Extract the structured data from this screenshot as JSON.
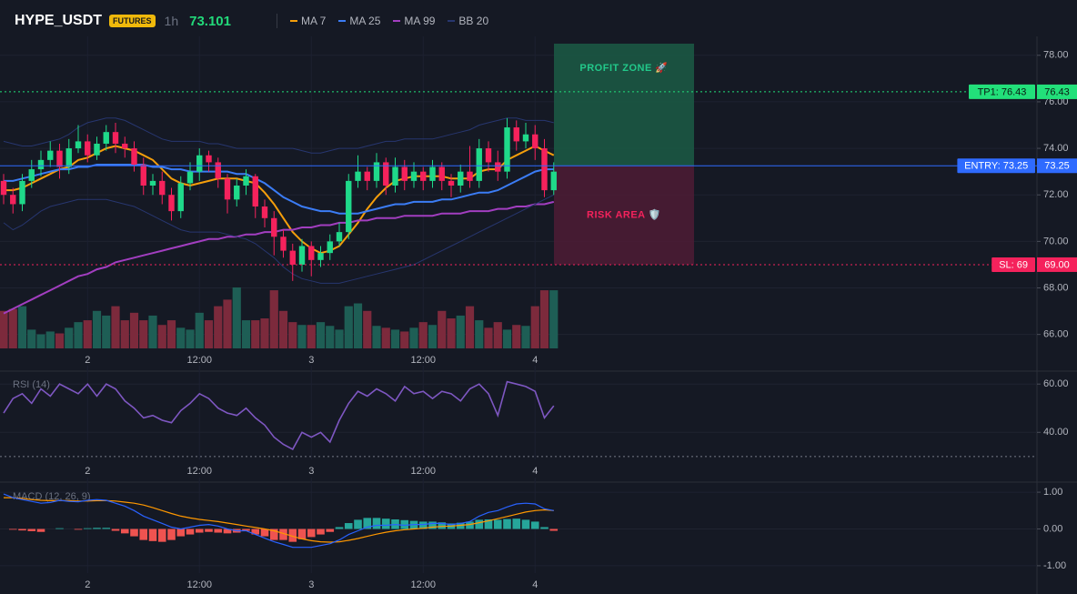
{
  "header": {
    "symbol": "HYPE_USDT",
    "badge": "FUTURES",
    "interval": "1h",
    "price": "73.101"
  },
  "chart_data": [
    {
      "type": "candlestick",
      "categories": [
        null,
        null,
        null,
        null,
        null,
        null,
        null,
        null,
        null,
        "2",
        null,
        null,
        null,
        null,
        null,
        null,
        null,
        null,
        null,
        null,
        null,
        "12:00",
        null,
        null,
        null,
        null,
        null,
        null,
        null,
        null,
        null,
        null,
        null,
        "3",
        null,
        null,
        null,
        null,
        null,
        null,
        null,
        null,
        null,
        null,
        null,
        "12:00",
        null,
        null,
        null,
        null,
        null,
        null,
        null,
        null,
        null,
        null,
        null,
        "4",
        null,
        null
      ],
      "open": [
        72.6,
        72.0,
        71.6,
        72.6,
        73.1,
        73.5,
        73.9,
        73.2,
        74.0,
        74.3,
        73.7,
        74.2,
        74.7,
        74.2,
        74.0,
        73.3,
        72.4,
        72.6,
        72.0,
        71.3,
        72.5,
        73.0,
        73.7,
        73.4,
        72.7,
        71.8,
        72.4,
        72.8,
        71.5,
        71.0,
        70.2,
        69.6,
        69.0,
        69.8,
        69.2,
        69.5,
        70.0,
        70.4,
        72.6,
        73.0,
        72.6,
        73.4,
        72.4,
        73.2,
        72.6,
        73.0,
        72.6,
        73.2,
        72.6,
        72.4,
        73.0,
        72.6,
        74.0,
        73.4,
        73.0,
        74.9,
        74.3,
        74.6,
        74.0,
        72.2
      ],
      "high": [
        72.9,
        72.3,
        72.9,
        73.5,
        73.9,
        74.3,
        74.2,
        74.4,
        75.0,
        74.6,
        74.5,
        75.0,
        75.1,
        74.5,
        74.3,
        73.6,
        72.9,
        73.0,
        72.3,
        72.8,
        73.4,
        74.0,
        73.9,
        73.6,
        72.9,
        72.7,
        73.1,
        72.9,
        71.8,
        71.3,
        70.5,
        69.9,
        70.1,
        70.0,
        69.8,
        70.3,
        70.8,
        72.9,
        73.7,
        73.2,
        73.8,
        73.6,
        73.6,
        73.5,
        73.4,
        73.2,
        73.5,
        73.4,
        72.9,
        73.3,
        74.1,
        74.4,
        74.3,
        73.9,
        75.3,
        75.2,
        75.1,
        75.0,
        74.4,
        73.4
      ],
      "low": [
        71.6,
        71.2,
        71.3,
        72.3,
        72.8,
        73.2,
        72.7,
        72.9,
        73.8,
        73.4,
        73.5,
        73.9,
        73.8,
        73.6,
        73.0,
        72.0,
        72.0,
        71.6,
        70.9,
        71.0,
        72.2,
        72.6,
        73.0,
        72.3,
        71.2,
        71.5,
        72.0,
        71.0,
        70.6,
        69.4,
        69.3,
        68.3,
        68.7,
        68.5,
        68.9,
        69.2,
        69.8,
        70.1,
        72.3,
        72.2,
        72.3,
        72.0,
        72.1,
        72.2,
        72.3,
        72.2,
        72.3,
        72.2,
        71.9,
        72.1,
        72.3,
        72.3,
        73.0,
        72.6,
        72.7,
        73.9,
        74.0,
        73.5,
        71.9,
        72.0
      ],
      "close": [
        72.0,
        71.6,
        72.6,
        73.1,
        73.5,
        73.9,
        73.2,
        74.0,
        74.3,
        73.7,
        74.2,
        74.7,
        74.2,
        74.0,
        73.3,
        72.4,
        72.6,
        72.0,
        71.3,
        72.5,
        73.0,
        73.7,
        73.4,
        72.7,
        71.8,
        72.4,
        72.8,
        71.5,
        71.0,
        70.2,
        69.6,
        69.0,
        69.8,
        69.2,
        69.5,
        70.0,
        70.4,
        72.6,
        73.0,
        72.6,
        73.4,
        72.4,
        73.2,
        72.6,
        73.0,
        72.6,
        73.2,
        72.6,
        72.4,
        73.0,
        72.6,
        74.0,
        73.4,
        73.0,
        74.9,
        74.3,
        74.6,
        74.0,
        72.2,
        73.0
      ],
      "volume": [
        40,
        42,
        45,
        20,
        15,
        18,
        16,
        22,
        28,
        30,
        40,
        35,
        45,
        30,
        38,
        30,
        35,
        25,
        30,
        22,
        20,
        38,
        30,
        45,
        52,
        65,
        30,
        30,
        32,
        62,
        40,
        28,
        25,
        25,
        28,
        24,
        20,
        45,
        48,
        40,
        24,
        22,
        20,
        18,
        22,
        28,
        25,
        40,
        32,
        35,
        45,
        30,
        22,
        28,
        20,
        25,
        24,
        45,
        62,
        62
      ],
      "volume_ylim": [
        0,
        325
      ],
      "up_color": "#1fd98a",
      "down_color": "#f5225c",
      "volume_up_color": "#1e5e55",
      "volume_down_color": "#7c2a3c",
      "series": [
        {
          "name": "MA 7",
          "color": "#f59e0b",
          "values": [
            72.2,
            72.2,
            72.3,
            72.5,
            72.7,
            72.9,
            73.1,
            73.2,
            73.5,
            73.6,
            73.8,
            74.0,
            74.1,
            74.0,
            73.9,
            73.7,
            73.5,
            73.1,
            72.7,
            72.5,
            72.4,
            72.5,
            72.6,
            72.7,
            72.7,
            72.7,
            72.6,
            72.5,
            72.1,
            71.6,
            71.0,
            70.4,
            70.0,
            69.7,
            69.5,
            69.6,
            69.8,
            70.3,
            70.8,
            71.4,
            71.9,
            72.3,
            72.6,
            72.7,
            72.8,
            72.8,
            72.8,
            72.8,
            72.7,
            72.7,
            72.7,
            73.0,
            73.1,
            73.1,
            73.5,
            73.7,
            73.9,
            74.1,
            73.9,
            73.7
          ]
        },
        {
          "name": "MA 25",
          "color": "#3b7cf5",
          "values": [
            72.6,
            72.6,
            72.7,
            72.8,
            72.9,
            73.0,
            73.1,
            73.1,
            73.2,
            73.2,
            73.3,
            73.3,
            73.3,
            73.3,
            73.3,
            73.3,
            73.2,
            73.2,
            73.1,
            73.1,
            73.0,
            73.0,
            73.0,
            73.0,
            73.0,
            72.9,
            72.9,
            72.7,
            72.5,
            72.2,
            71.9,
            71.7,
            71.5,
            71.4,
            71.3,
            71.3,
            71.2,
            71.2,
            71.2,
            71.3,
            71.4,
            71.5,
            71.6,
            71.6,
            71.7,
            71.7,
            71.7,
            71.8,
            71.8,
            71.9,
            72.0,
            72.1,
            72.1,
            72.2,
            72.4,
            72.6,
            72.8,
            73.0,
            73.1,
            73.1
          ]
        },
        {
          "name": "MA 99",
          "color": "#a23ec0",
          "values": [
            66.9,
            67.1,
            67.3,
            67.5,
            67.7,
            67.9,
            68.1,
            68.3,
            68.5,
            68.6,
            68.8,
            68.9,
            69.1,
            69.2,
            69.3,
            69.4,
            69.5,
            69.6,
            69.7,
            69.8,
            69.9,
            70.0,
            70.1,
            70.1,
            70.2,
            70.2,
            70.3,
            70.3,
            70.4,
            70.4,
            70.5,
            70.5,
            70.6,
            70.6,
            70.7,
            70.7,
            70.8,
            70.8,
            70.9,
            70.9,
            71.0,
            71.0,
            71.0,
            71.1,
            71.1,
            71.1,
            71.1,
            71.2,
            71.2,
            71.2,
            71.3,
            71.3,
            71.3,
            71.4,
            71.4,
            71.5,
            71.5,
            71.6,
            71.6,
            71.7
          ]
        },
        {
          "name": "BB 20",
          "color": "#27366f",
          "values": [
            74.3,
            74.2,
            74.1,
            74.1,
            74.2,
            74.3,
            74.4,
            74.6,
            74.9,
            75.1,
            75.2,
            75.3,
            75.3,
            75.2,
            75.0,
            74.8,
            74.6,
            74.4,
            74.3,
            74.3,
            74.3,
            74.3,
            74.2,
            74.2,
            74.1,
            74.0,
            74.0,
            74.0,
            74.0,
            74.0,
            74.0,
            74.0,
            73.9,
            73.8,
            73.8,
            73.9,
            74.0,
            74.0,
            74.0,
            74.1,
            74.2,
            74.3,
            74.3,
            74.4,
            74.4,
            74.4,
            74.4,
            74.5,
            74.6,
            74.7,
            74.8,
            75.0,
            75.1,
            75.2,
            75.3,
            75.3,
            75.2,
            75.2,
            75.2,
            75.1
          ],
          "lower": [
            70.8,
            70.5,
            70.7,
            71.0,
            71.3,
            71.5,
            71.6,
            71.7,
            71.8,
            71.8,
            71.8,
            71.8,
            71.7,
            71.6,
            71.5,
            71.3,
            71.1,
            70.9,
            70.7,
            70.5,
            70.4,
            70.4,
            70.4,
            70.4,
            70.3,
            70.2,
            70.1,
            69.9,
            69.6,
            69.3,
            68.9,
            68.6,
            68.4,
            68.3,
            68.2,
            68.2,
            68.2,
            68.3,
            68.4,
            68.5,
            68.6,
            68.7,
            68.8,
            68.9,
            69.0,
            69.2,
            69.4,
            69.6,
            69.8,
            70.0,
            70.2,
            70.4,
            70.6,
            70.8,
            71.0,
            71.2,
            71.4,
            71.6,
            71.8,
            72.0
          ]
        }
      ],
      "ylim": [
        65.4,
        78.5
      ],
      "yticks": [
        {
          "value": 66,
          "label": "66.00"
        },
        {
          "value": 68,
          "label": "68.00"
        },
        {
          "value": 70,
          "label": "70.00"
        },
        {
          "value": 72,
          "label": "72.00"
        },
        {
          "value": 74,
          "label": "74.00"
        },
        {
          "value": 76,
          "label": "76.00"
        },
        {
          "value": 78,
          "label": "78.00"
        }
      ],
      "grid": true,
      "levels": [
        {
          "label": "TP1: 76.43",
          "value": 76.43,
          "color": "#22e07a",
          "text_color": "#0b1a12",
          "style": "dotted"
        },
        {
          "label": "ENTRY: 73.25",
          "value": 73.25,
          "color": "#2f6bff",
          "text_color": "#ffffff",
          "style": "solid"
        },
        {
          "label": "SL: 69",
          "value": 69,
          "value_label": "69.00",
          "color": "#f5225c",
          "text_color": "#ffffff",
          "style": "dotted"
        }
      ],
      "zones": [
        {
          "label": "PROFIT ZONE 🚀",
          "from": 73.25,
          "to": 78.5,
          "color": "#1b5c45",
          "text_color": "#22c98a"
        },
        {
          "label": "RISK AREA 🛡️",
          "from": 69,
          "to": 73.25,
          "color": "#4d1c35",
          "text_color": "#f5225c"
        }
      ]
    },
    {
      "type": "line",
      "title": "RSI (14)",
      "series": [
        {
          "color": "#7e57c2",
          "values": [
            48,
            54,
            56,
            52,
            58,
            55,
            60,
            58,
            56,
            60,
            55,
            60,
            58,
            53,
            50,
            46,
            47,
            45,
            44,
            49,
            52,
            56,
            54,
            50,
            48,
            47,
            50,
            46,
            43,
            38,
            35,
            33,
            40,
            38,
            40,
            36,
            45,
            52,
            57,
            55,
            58,
            56,
            53,
            59,
            56,
            57,
            54,
            57,
            56,
            53,
            58,
            60,
            56,
            47,
            61,
            60,
            59,
            57,
            46,
            51
          ]
        }
      ],
      "ylim": [
        28.8,
        64.6
      ],
      "yticks": [
        {
          "value": 40,
          "label": "40.00"
        },
        {
          "value": 60,
          "label": "60.00"
        }
      ],
      "hlines": [
        30
      ]
    },
    {
      "type": "macd",
      "title": "MACD (12, 26, 9)",
      "macd": {
        "color": "#2962ff",
        "values": [
          0.95,
          0.85,
          0.8,
          0.75,
          0.7,
          0.72,
          0.78,
          0.75,
          0.74,
          0.78,
          0.8,
          0.78,
          0.7,
          0.62,
          0.5,
          0.35,
          0.25,
          0.15,
          0.05,
          0.0,
          0.05,
          0.1,
          0.12,
          0.08,
          0.0,
          -0.05,
          -0.05,
          -0.15,
          -0.25,
          -0.35,
          -0.42,
          -0.5,
          -0.5,
          -0.5,
          -0.45,
          -0.4,
          -0.3,
          -0.15,
          -0.05,
          0.05,
          0.1,
          0.1,
          0.12,
          0.1,
          0.12,
          0.12,
          0.15,
          0.15,
          0.12,
          0.15,
          0.2,
          0.35,
          0.45,
          0.5,
          0.6,
          0.68,
          0.7,
          0.68,
          0.55,
          0.5
        ]
      },
      "signal": {
        "color": "#ff9800",
        "values": [
          0.85,
          0.85,
          0.83,
          0.8,
          0.78,
          0.77,
          0.77,
          0.77,
          0.76,
          0.76,
          0.77,
          0.77,
          0.76,
          0.73,
          0.7,
          0.65,
          0.58,
          0.5,
          0.42,
          0.35,
          0.3,
          0.26,
          0.23,
          0.2,
          0.16,
          0.12,
          0.08,
          0.04,
          0.0,
          -0.05,
          -0.12,
          -0.2,
          -0.27,
          -0.32,
          -0.35,
          -0.36,
          -0.35,
          -0.31,
          -0.26,
          -0.2,
          -0.14,
          -0.09,
          -0.05,
          -0.02,
          0.0,
          0.02,
          0.05,
          0.07,
          0.08,
          0.1,
          0.12,
          0.17,
          0.22,
          0.28,
          0.34,
          0.4,
          0.46,
          0.5,
          0.52,
          0.5
        ]
      },
      "histogram": {
        "up_color": "#26a69a",
        "down_color": "#ef5350",
        "values": [
          0.0,
          -0.02,
          -0.04,
          -0.06,
          -0.08,
          0.0,
          0.02,
          0.0,
          -0.02,
          0.02,
          0.03,
          0.03,
          -0.05,
          -0.12,
          -0.2,
          -0.3,
          -0.33,
          -0.35,
          -0.3,
          -0.2,
          -0.15,
          -0.1,
          -0.08,
          -0.1,
          -0.12,
          -0.1,
          -0.05,
          -0.15,
          -0.2,
          -0.3,
          -0.3,
          -0.35,
          -0.28,
          -0.22,
          -0.15,
          -0.08,
          0.05,
          0.16,
          0.25,
          0.3,
          0.3,
          0.28,
          0.26,
          0.24,
          0.22,
          0.2,
          0.2,
          0.18,
          0.15,
          0.17,
          0.2,
          0.25,
          0.26,
          0.25,
          0.27,
          0.28,
          0.25,
          0.2,
          0.05,
          -0.05
        ]
      },
      "ylim": [
        -1.2,
        1.2
      ],
      "yticks": [
        {
          "value": 1,
          "label": "1.00"
        },
        {
          "value": 0,
          "label": "0.00"
        },
        {
          "value": -1,
          "label": "-1.00"
        }
      ]
    }
  ]
}
